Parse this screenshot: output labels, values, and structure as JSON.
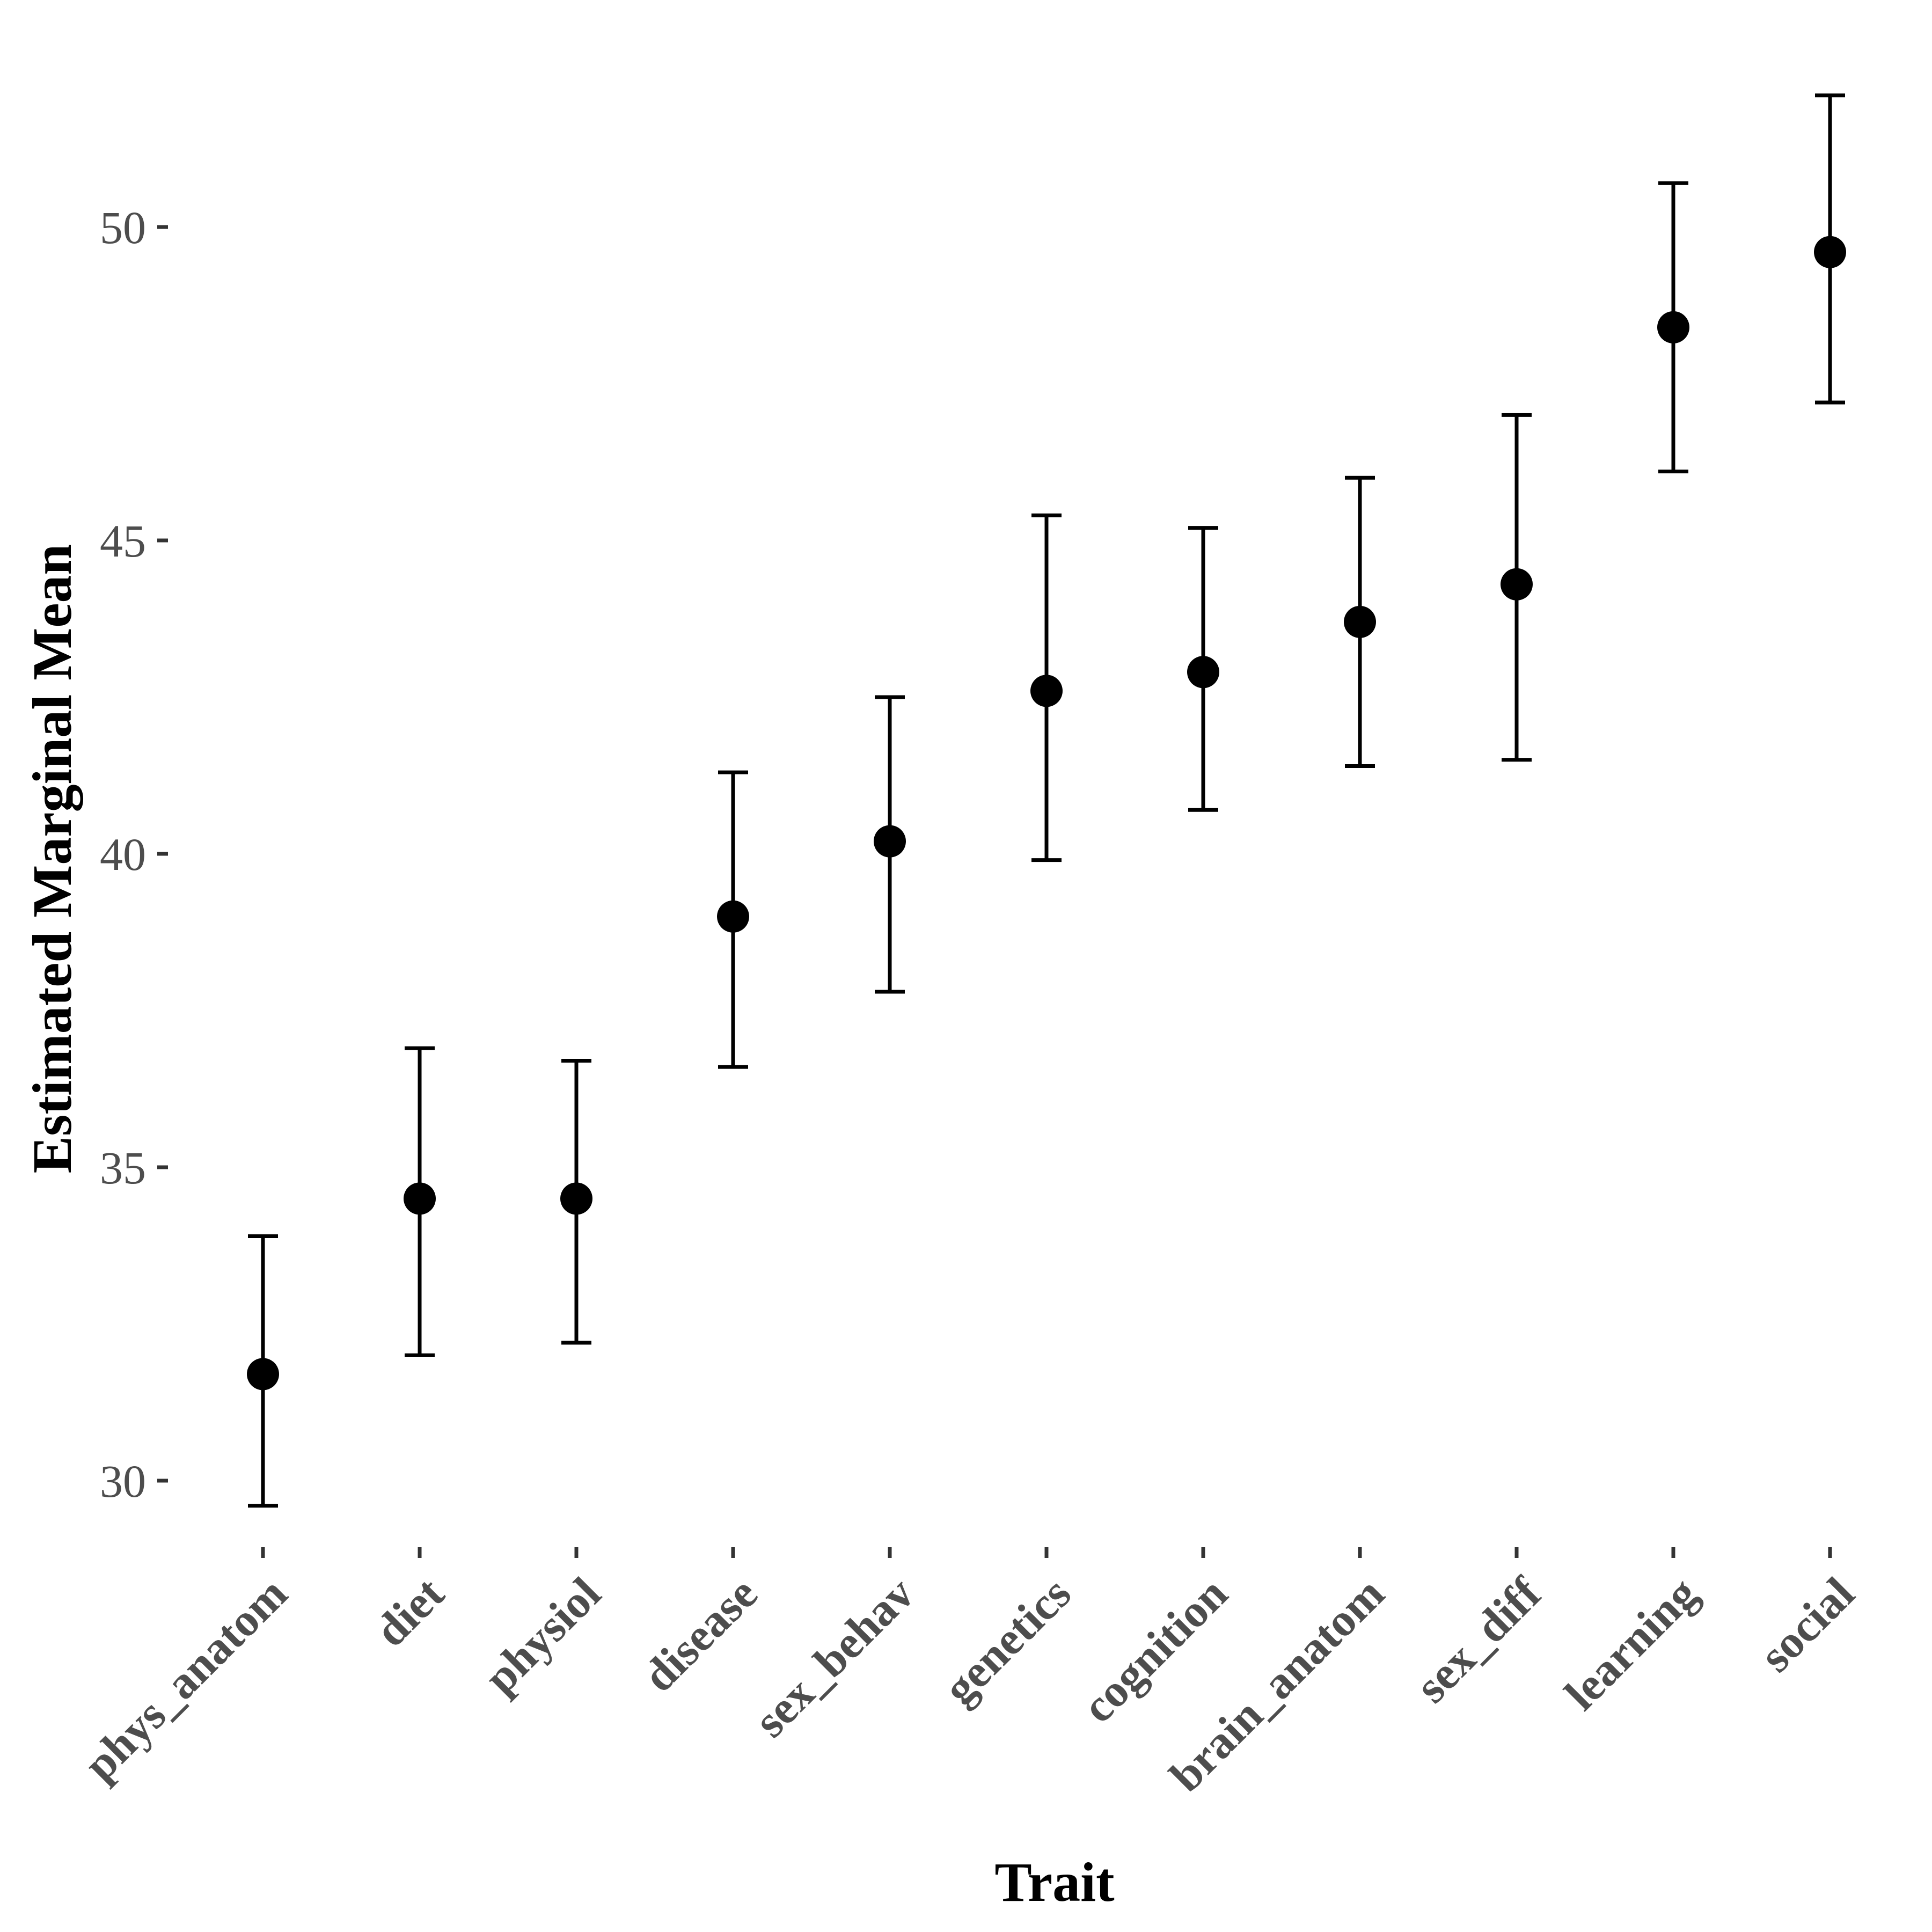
{
  "chart_data": {
    "type": "scatter",
    "subtype": "point-with-error-bars",
    "title": "",
    "xlabel": "Trait",
    "ylabel": "Estimated Marginal Mean",
    "categories": [
      "phys_anatom",
      "diet",
      "physiol",
      "disease",
      "sex_behav",
      "genetics",
      "cognition",
      "brain_anatom",
      "sex_diff",
      "learning",
      "social"
    ],
    "series": [
      {
        "values": [
          31.7,
          34.5,
          34.5,
          39.0,
          40.2,
          42.6,
          42.9,
          43.7,
          44.3,
          48.4,
          49.6
        ],
        "lower": [
          29.6,
          32.0,
          32.2,
          36.6,
          37.8,
          39.9,
          40.7,
          41.4,
          41.5,
          46.1,
          47.2
        ],
        "upper": [
          33.9,
          36.9,
          36.7,
          41.3,
          42.5,
          45.4,
          45.2,
          46.0,
          47.0,
          50.7,
          52.1
        ]
      }
    ],
    "ylim": [
      28.5,
      52.6
    ],
    "yticks": [
      30,
      35,
      40,
      45,
      50
    ],
    "grid": false,
    "legend": "none",
    "colors": {
      "points": "#000000",
      "tick_labels": "#4d4d4d",
      "axis_titles": "#000000"
    }
  }
}
